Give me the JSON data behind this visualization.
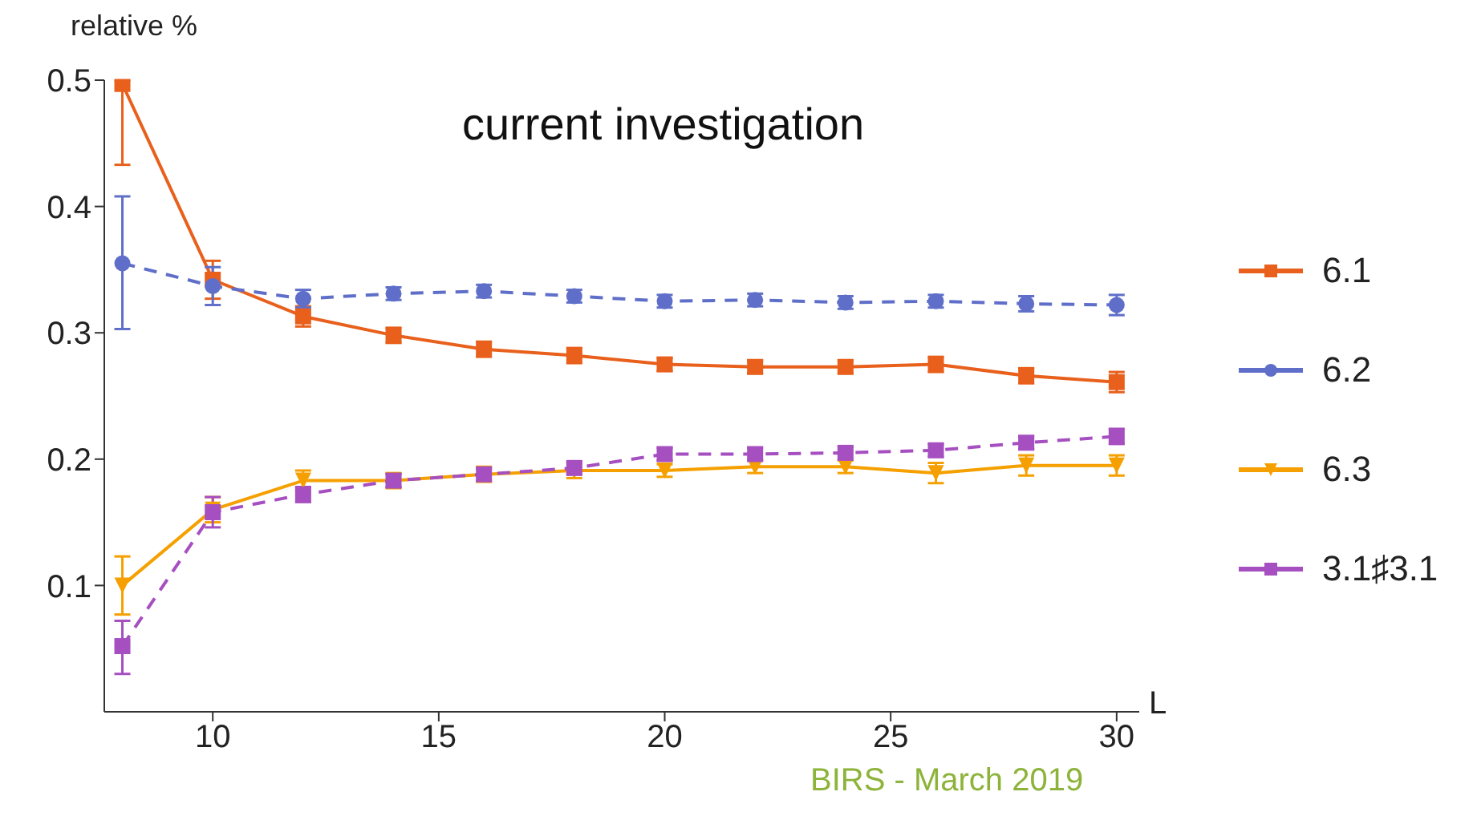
{
  "chart_data": {
    "type": "line",
    "title": "current investigation",
    "xlabel": "L",
    "ylabel": "relative %",
    "annotations": [
      "BIRS - March 2019"
    ],
    "x": [
      8,
      10,
      12,
      14,
      16,
      18,
      20,
      22,
      24,
      26,
      28,
      30
    ],
    "xlim": [
      7.6,
      30.5
    ],
    "xticks": [
      10,
      15,
      20,
      25,
      30
    ],
    "ylim": [
      0,
      0.5
    ],
    "yticks": [
      0.1,
      0.2,
      0.3,
      0.4,
      0.5
    ],
    "legend": "right",
    "series": [
      {
        "name": "6.1",
        "color": "#e8601c",
        "marker": "square",
        "line_style": "solid",
        "values": [
          0.497,
          0.342,
          0.313,
          0.298,
          0.287,
          0.282,
          0.275,
          0.273,
          0.273,
          0.275,
          0.266,
          0.261
        ],
        "errors": [
          [
            0.433,
            0.5
          ],
          0.015,
          0.008,
          0.006,
          0.006,
          0.006,
          0.005,
          0.005,
          0.005,
          0.006,
          0.006,
          0.008
        ]
      },
      {
        "name": "6.2",
        "color": "#5f6fc9",
        "marker": "circle",
        "line_style": "dashed",
        "values": [
          0.355,
          0.337,
          0.327,
          0.331,
          0.333,
          0.329,
          0.325,
          0.326,
          0.324,
          0.325,
          0.323,
          0.322
        ],
        "errors": [
          [
            0.303,
            0.408
          ],
          0.015,
          0.007,
          0.005,
          0.005,
          0.005,
          0.005,
          0.005,
          0.005,
          0.005,
          0.006,
          0.008
        ]
      },
      {
        "name": "6.3",
        "color": "#f5a000",
        "marker": "triangle",
        "line_style": "solid",
        "values": [
          0.1,
          0.16,
          0.183,
          0.183,
          0.188,
          0.191,
          0.191,
          0.194,
          0.194,
          0.189,
          0.195,
          0.195
        ],
        "errors": [
          [
            0.077,
            0.123
          ],
          0.01,
          0.008,
          0.006,
          0.006,
          0.006,
          0.005,
          0.005,
          0.005,
          0.008,
          0.008,
          0.008
        ]
      },
      {
        "name": "3.1♯3.1",
        "color": "#a64fc0",
        "marker": "square",
        "line_style": "dashed",
        "values": [
          0.052,
          0.158,
          0.172,
          0.183,
          0.188,
          0.193,
          0.204,
          0.204,
          0.205,
          0.207,
          0.213,
          0.218
        ],
        "errors": [
          [
            0.03,
            0.072
          ],
          0.012,
          0.006,
          0.005,
          0.005,
          0.005,
          0.005,
          0.005,
          0.005,
          0.005,
          0.005,
          0.006
        ]
      }
    ]
  }
}
